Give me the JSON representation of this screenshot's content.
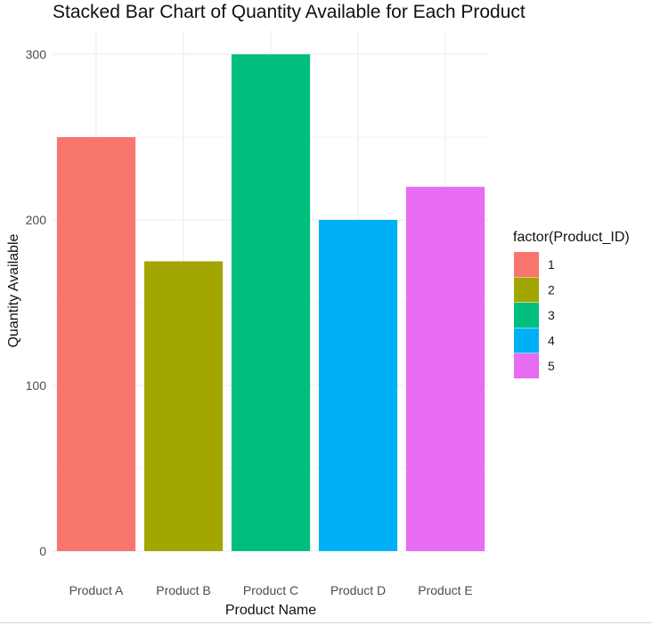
{
  "chart_data": {
    "type": "bar",
    "title": "Stacked Bar Chart of Quantity Available for Each Product",
    "xlabel": "Product Name",
    "ylabel": "Quantity Available",
    "categories": [
      "Product A",
      "Product B",
      "Product C",
      "Product D",
      "Product E"
    ],
    "values": [
      250,
      175,
      300,
      200,
      220
    ],
    "fill_groups": [
      "1",
      "2",
      "3",
      "4",
      "5"
    ],
    "colors": [
      "#F8766D",
      "#A3A500",
      "#00BF7D",
      "#00B0F6",
      "#E76BF3"
    ],
    "yticks": [
      0,
      100,
      200,
      300
    ],
    "ylim": [
      0,
      315
    ],
    "grid": true,
    "legend": {
      "title": "factor(Product_ID)",
      "placement": "right",
      "entries": [
        "1",
        "2",
        "3",
        "4",
        "5"
      ]
    }
  }
}
